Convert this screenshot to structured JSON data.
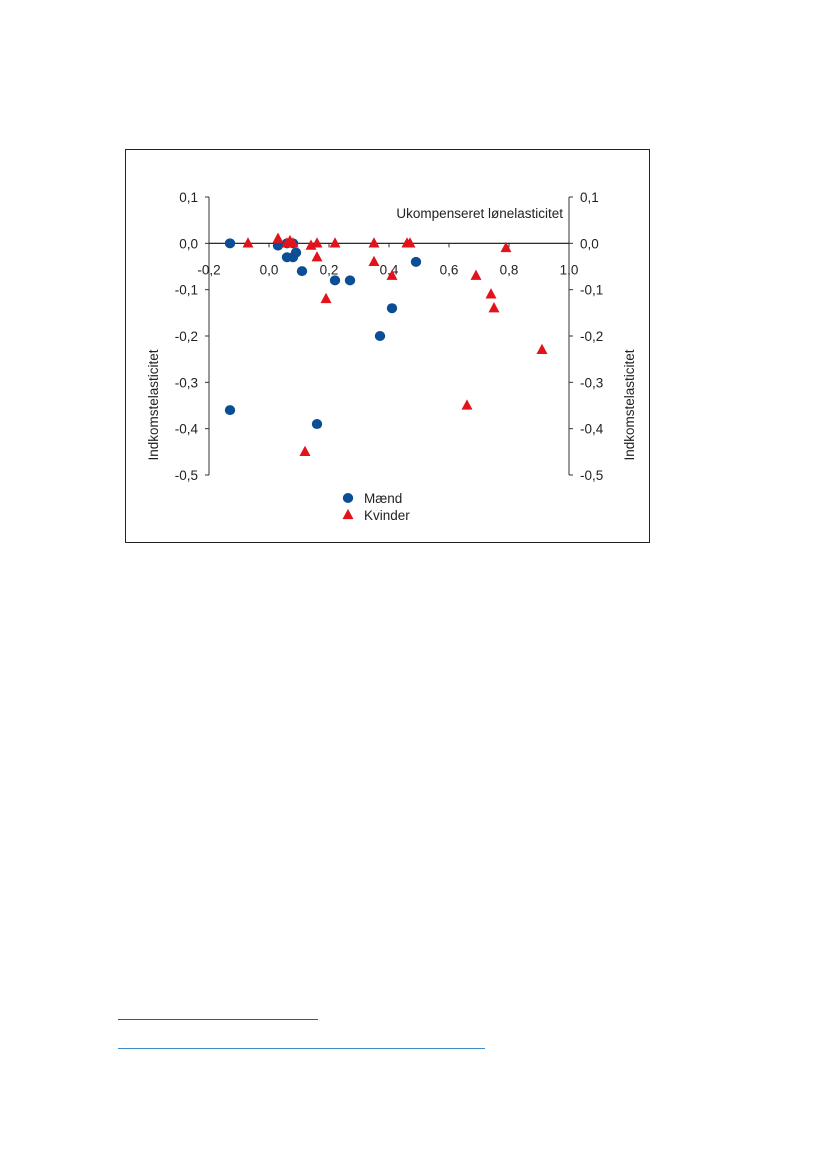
{
  "chart_data": {
    "type": "scatter",
    "title": "",
    "xlabel": "Ukompenseret lønelasticitet",
    "ylabel_left": "Indkomstelasticitet",
    "ylabel_right": "Indkomstelasticitet",
    "xlim": [
      -0.2,
      1.0
    ],
    "ylim": [
      -0.5,
      0.1
    ],
    "x_ticks": [
      {
        "v": -0.2,
        "label": "-0,2"
      },
      {
        "v": 0.0,
        "label": "0,0"
      },
      {
        "v": 0.2,
        "label": "0,2"
      },
      {
        "v": 0.4,
        "label": "0,4"
      },
      {
        "v": 0.6,
        "label": "0,6"
      },
      {
        "v": 0.8,
        "label": "0,8"
      },
      {
        "v": 1.0,
        "label": "1,0"
      }
    ],
    "y_ticks": [
      {
        "v": 0.1,
        "label": "0,1"
      },
      {
        "v": 0.0,
        "label": "0,0"
      },
      {
        "v": -0.1,
        "label": "-0,1"
      },
      {
        "v": -0.2,
        "label": "-0,2"
      },
      {
        "v": -0.3,
        "label": "-0,3"
      },
      {
        "v": -0.4,
        "label": "-0,4"
      },
      {
        "v": -0.5,
        "label": "-0,5"
      }
    ],
    "grid": false,
    "legend_position": "bottom-center",
    "series": [
      {
        "name": "Mænd",
        "marker": "circle",
        "color": "#0a4f96",
        "points": [
          [
            -0.13,
            0.0
          ],
          [
            0.03,
            -0.005
          ],
          [
            0.06,
            0.0
          ],
          [
            0.08,
            0.0
          ],
          [
            0.06,
            -0.03
          ],
          [
            0.08,
            -0.03
          ],
          [
            0.09,
            -0.02
          ],
          [
            0.11,
            -0.06
          ],
          [
            0.22,
            -0.08
          ],
          [
            0.27,
            -0.08
          ],
          [
            0.37,
            -0.2
          ],
          [
            0.41,
            -0.14
          ],
          [
            0.49,
            -0.04
          ],
          [
            -0.13,
            -0.36
          ],
          [
            0.16,
            -0.39
          ]
        ]
      },
      {
        "name": "Kvinder",
        "marker": "triangle",
        "color": "#e3131b",
        "points": [
          [
            -0.07,
            0.0
          ],
          [
            0.03,
            0.01
          ],
          [
            0.06,
            0.0
          ],
          [
            0.07,
            0.005
          ],
          [
            0.08,
            0.0
          ],
          [
            0.14,
            -0.005
          ],
          [
            0.16,
            0.0
          ],
          [
            0.16,
            -0.03
          ],
          [
            0.22,
            0.0
          ],
          [
            0.19,
            -0.12
          ],
          [
            0.35,
            0.0
          ],
          [
            0.35,
            -0.04
          ],
          [
            0.41,
            -0.07
          ],
          [
            0.46,
            0.0
          ],
          [
            0.47,
            0.0
          ],
          [
            0.12,
            -0.45
          ],
          [
            0.66,
            -0.35
          ],
          [
            0.69,
            -0.07
          ],
          [
            0.74,
            -0.11
          ],
          [
            0.75,
            -0.14
          ],
          [
            0.79,
            -0.01
          ],
          [
            0.91,
            -0.23
          ]
        ]
      }
    ]
  },
  "colors": {
    "footnote_rule": "#555555",
    "footnote_link": "#3c8dcb"
  }
}
